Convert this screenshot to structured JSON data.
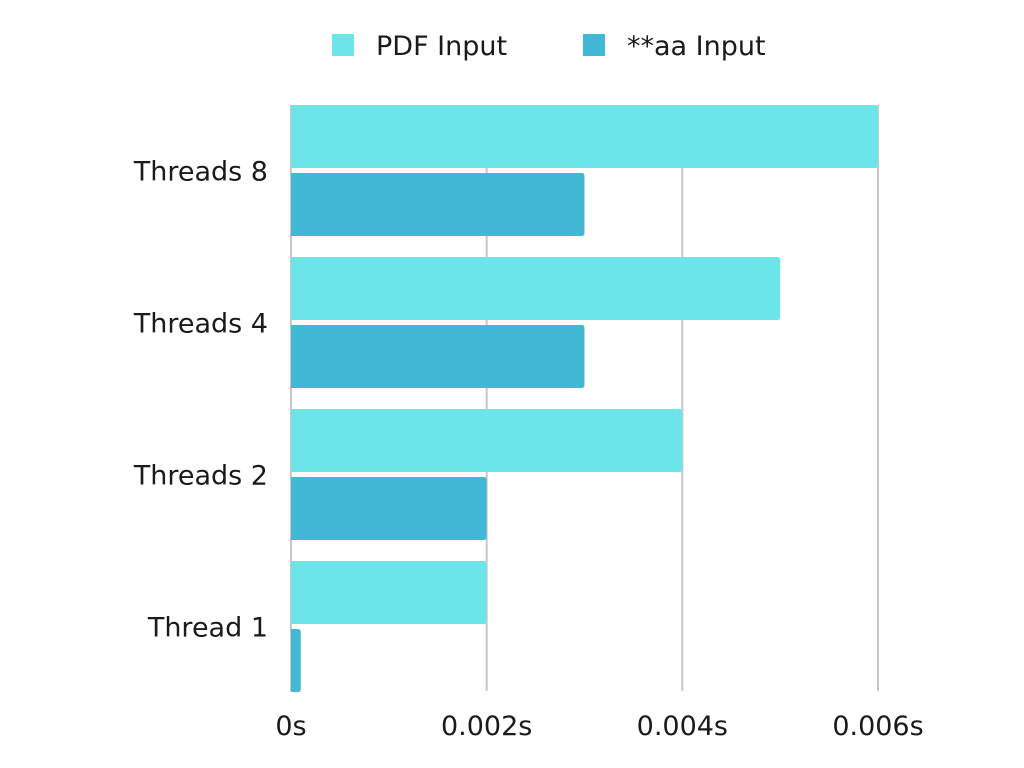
{
  "chart_data": {
    "type": "bar",
    "orientation": "horizontal",
    "categories": [
      "Thread 1",
      "Threads 2",
      "Threads 4",
      "Threads 8"
    ],
    "series": [
      {
        "name": "PDF Input",
        "color": "#6ce5e8",
        "values": [
          0.002,
          0.004,
          0.005,
          0.006
        ]
      },
      {
        "name": "**aa Input",
        "color": "#41b8d5",
        "values": [
          0.0001,
          0.002,
          0.003,
          0.003
        ]
      }
    ],
    "xticks": [
      {
        "value": 0,
        "label": "0s"
      },
      {
        "value": 0.002,
        "label": "0.002s"
      },
      {
        "value": 0.004,
        "label": "0.004s"
      },
      {
        "value": 0.006,
        "label": "0.006s"
      }
    ],
    "xlim": [
      0,
      0.006
    ],
    "grid": "vertical",
    "legend": "top-center"
  }
}
